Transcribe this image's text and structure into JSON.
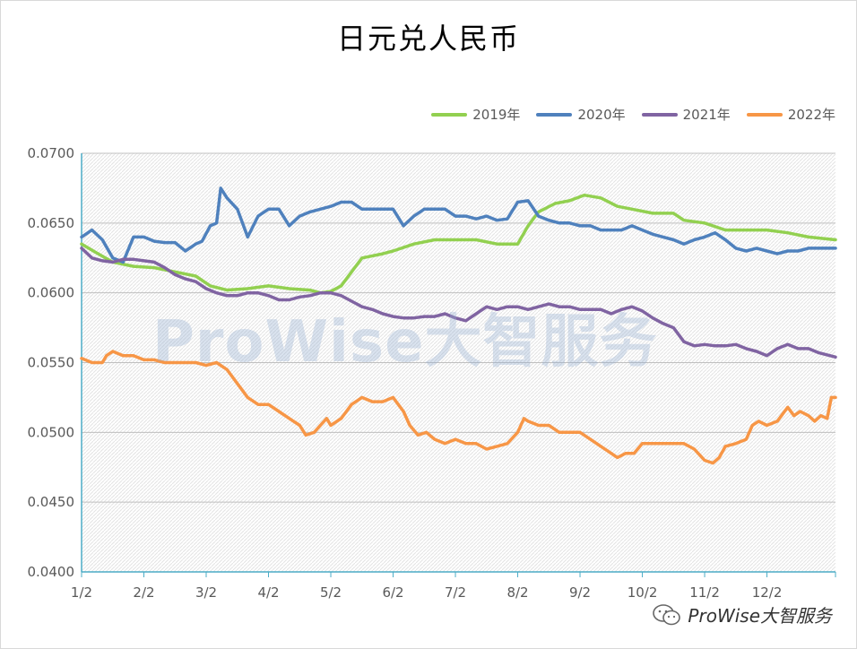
{
  "chart_data": {
    "type": "line",
    "title": "日元兑人民币",
    "xlabel": "",
    "ylabel": "",
    "x_ticks": [
      "1/2",
      "2/2",
      "3/2",
      "4/2",
      "5/2",
      "6/2",
      "7/2",
      "8/2",
      "9/2",
      "10/2",
      "11/2",
      "12/2"
    ],
    "y_ticks": [
      "0.0700",
      "0.0650",
      "0.0600",
      "0.0550",
      "0.0500",
      "0.0450",
      "0.0400"
    ],
    "ylim": [
      0.04,
      0.07
    ],
    "legend_position": "top-right",
    "grid": true,
    "x_days": [
      0,
      30,
      60,
      90,
      120,
      150,
      180,
      210,
      240,
      270,
      300,
      330,
      363
    ],
    "series": [
      {
        "name": "2019年",
        "color": "#92d050",
        "points": [
          [
            0,
            0.0635
          ],
          [
            8,
            0.0628
          ],
          [
            15,
            0.0622
          ],
          [
            25,
            0.0619
          ],
          [
            35,
            0.0618
          ],
          [
            45,
            0.0615
          ],
          [
            55,
            0.0612
          ],
          [
            62,
            0.0605
          ],
          [
            70,
            0.0602
          ],
          [
            80,
            0.0603
          ],
          [
            90,
            0.0605
          ],
          [
            100,
            0.0603
          ],
          [
            110,
            0.0602
          ],
          [
            115,
            0.06
          ],
          [
            120,
            0.0601
          ],
          [
            125,
            0.0605
          ],
          [
            130,
            0.0615
          ],
          [
            135,
            0.0625
          ],
          [
            145,
            0.0628
          ],
          [
            150,
            0.063
          ],
          [
            160,
            0.0635
          ],
          [
            170,
            0.0638
          ],
          [
            180,
            0.0638
          ],
          [
            190,
            0.0638
          ],
          [
            200,
            0.0635
          ],
          [
            210,
            0.0635
          ],
          [
            215,
            0.0648
          ],
          [
            220,
            0.0658
          ],
          [
            228,
            0.0664
          ],
          [
            235,
            0.0666
          ],
          [
            242,
            0.067
          ],
          [
            250,
            0.0668
          ],
          [
            258,
            0.0662
          ],
          [
            265,
            0.066
          ],
          [
            275,
            0.0657
          ],
          [
            285,
            0.0657
          ],
          [
            290,
            0.0652
          ],
          [
            300,
            0.065
          ],
          [
            310,
            0.0645
          ],
          [
            320,
            0.0645
          ],
          [
            330,
            0.0645
          ],
          [
            340,
            0.0643
          ],
          [
            350,
            0.064
          ],
          [
            363,
            0.0638
          ]
        ]
      },
      {
        "name": "2020年",
        "color": "#4f81bd",
        "points": [
          [
            0,
            0.064
          ],
          [
            5,
            0.0645
          ],
          [
            10,
            0.0638
          ],
          [
            15,
            0.0625
          ],
          [
            20,
            0.0622
          ],
          [
            25,
            0.064
          ],
          [
            30,
            0.064
          ],
          [
            35,
            0.0637
          ],
          [
            40,
            0.0636
          ],
          [
            45,
            0.0636
          ],
          [
            50,
            0.063
          ],
          [
            55,
            0.0635
          ],
          [
            58,
            0.0637
          ],
          [
            62,
            0.0648
          ],
          [
            65,
            0.065
          ],
          [
            67,
            0.0675
          ],
          [
            70,
            0.0668
          ],
          [
            75,
            0.066
          ],
          [
            80,
            0.064
          ],
          [
            85,
            0.0655
          ],
          [
            90,
            0.066
          ],
          [
            95,
            0.066
          ],
          [
            100,
            0.0648
          ],
          [
            105,
            0.0655
          ],
          [
            110,
            0.0658
          ],
          [
            115,
            0.066
          ],
          [
            120,
            0.0662
          ],
          [
            125,
            0.0665
          ],
          [
            130,
            0.0665
          ],
          [
            135,
            0.066
          ],
          [
            140,
            0.066
          ],
          [
            145,
            0.066
          ],
          [
            150,
            0.066
          ],
          [
            155,
            0.0648
          ],
          [
            160,
            0.0655
          ],
          [
            165,
            0.066
          ],
          [
            170,
            0.066
          ],
          [
            175,
            0.066
          ],
          [
            180,
            0.0655
          ],
          [
            185,
            0.0655
          ],
          [
            190,
            0.0653
          ],
          [
            195,
            0.0655
          ],
          [
            200,
            0.0652
          ],
          [
            205,
            0.0653
          ],
          [
            210,
            0.0665
          ],
          [
            215,
            0.0666
          ],
          [
            220,
            0.0655
          ],
          [
            225,
            0.0652
          ],
          [
            230,
            0.065
          ],
          [
            235,
            0.065
          ],
          [
            240,
            0.0648
          ],
          [
            245,
            0.0648
          ],
          [
            250,
            0.0645
          ],
          [
            255,
            0.0645
          ],
          [
            260,
            0.0645
          ],
          [
            265,
            0.0648
          ],
          [
            270,
            0.0645
          ],
          [
            275,
            0.0642
          ],
          [
            280,
            0.064
          ],
          [
            285,
            0.0638
          ],
          [
            290,
            0.0635
          ],
          [
            295,
            0.0638
          ],
          [
            300,
            0.064
          ],
          [
            305,
            0.0643
          ],
          [
            310,
            0.0638
          ],
          [
            315,
            0.0632
          ],
          [
            320,
            0.063
          ],
          [
            325,
            0.0632
          ],
          [
            330,
            0.063
          ],
          [
            335,
            0.0628
          ],
          [
            340,
            0.063
          ],
          [
            345,
            0.063
          ],
          [
            350,
            0.0632
          ],
          [
            355,
            0.0632
          ],
          [
            363,
            0.0632
          ]
        ]
      },
      {
        "name": "2021年",
        "color": "#8064a2",
        "points": [
          [
            0,
            0.0632
          ],
          [
            5,
            0.0625
          ],
          [
            10,
            0.0623
          ],
          [
            15,
            0.0622
          ],
          [
            20,
            0.0624
          ],
          [
            25,
            0.0624
          ],
          [
            30,
            0.0623
          ],
          [
            35,
            0.0622
          ],
          [
            40,
            0.0618
          ],
          [
            45,
            0.0613
          ],
          [
            50,
            0.061
          ],
          [
            55,
            0.0608
          ],
          [
            60,
            0.0603
          ],
          [
            65,
            0.06
          ],
          [
            70,
            0.0598
          ],
          [
            75,
            0.0598
          ],
          [
            80,
            0.06
          ],
          [
            85,
            0.06
          ],
          [
            90,
            0.0598
          ],
          [
            95,
            0.0595
          ],
          [
            100,
            0.0595
          ],
          [
            105,
            0.0597
          ],
          [
            110,
            0.0598
          ],
          [
            115,
            0.06
          ],
          [
            120,
            0.06
          ],
          [
            125,
            0.0598
          ],
          [
            130,
            0.0594
          ],
          [
            135,
            0.059
          ],
          [
            140,
            0.0588
          ],
          [
            145,
            0.0585
          ],
          [
            150,
            0.0583
          ],
          [
            155,
            0.0582
          ],
          [
            160,
            0.0582
          ],
          [
            165,
            0.0583
          ],
          [
            170,
            0.0583
          ],
          [
            175,
            0.0585
          ],
          [
            180,
            0.0582
          ],
          [
            185,
            0.058
          ],
          [
            190,
            0.0585
          ],
          [
            195,
            0.059
          ],
          [
            200,
            0.0588
          ],
          [
            205,
            0.059
          ],
          [
            210,
            0.059
          ],
          [
            215,
            0.0588
          ],
          [
            220,
            0.059
          ],
          [
            225,
            0.0592
          ],
          [
            230,
            0.059
          ],
          [
            235,
            0.059
          ],
          [
            240,
            0.0588
          ],
          [
            245,
            0.0588
          ],
          [
            250,
            0.0588
          ],
          [
            255,
            0.0585
          ],
          [
            260,
            0.0588
          ],
          [
            265,
            0.059
          ],
          [
            270,
            0.0587
          ],
          [
            275,
            0.0582
          ],
          [
            280,
            0.0578
          ],
          [
            285,
            0.0575
          ],
          [
            290,
            0.0565
          ],
          [
            295,
            0.0562
          ],
          [
            300,
            0.0563
          ],
          [
            305,
            0.0562
          ],
          [
            310,
            0.0562
          ],
          [
            315,
            0.0563
          ],
          [
            320,
            0.056
          ],
          [
            325,
            0.0558
          ],
          [
            330,
            0.0555
          ],
          [
            335,
            0.056
          ],
          [
            340,
            0.0563
          ],
          [
            345,
            0.056
          ],
          [
            350,
            0.056
          ],
          [
            355,
            0.0557
          ],
          [
            363,
            0.0554
          ]
        ]
      },
      {
        "name": "2022年",
        "color": "#f79646",
        "points": [
          [
            0,
            0.0553
          ],
          [
            5,
            0.055
          ],
          [
            10,
            0.055
          ],
          [
            12,
            0.0555
          ],
          [
            15,
            0.0558
          ],
          [
            20,
            0.0555
          ],
          [
            25,
            0.0555
          ],
          [
            30,
            0.0552
          ],
          [
            35,
            0.0552
          ],
          [
            40,
            0.055
          ],
          [
            45,
            0.055
          ],
          [
            50,
            0.055
          ],
          [
            55,
            0.055
          ],
          [
            60,
            0.0548
          ],
          [
            65,
            0.055
          ],
          [
            70,
            0.0545
          ],
          [
            75,
            0.0535
          ],
          [
            80,
            0.0525
          ],
          [
            85,
            0.052
          ],
          [
            90,
            0.052
          ],
          [
            95,
            0.0515
          ],
          [
            100,
            0.051
          ],
          [
            105,
            0.0505
          ],
          [
            108,
            0.0498
          ],
          [
            112,
            0.05
          ],
          [
            115,
            0.0505
          ],
          [
            118,
            0.051
          ],
          [
            120,
            0.0505
          ],
          [
            125,
            0.051
          ],
          [
            130,
            0.052
          ],
          [
            135,
            0.0525
          ],
          [
            140,
            0.0522
          ],
          [
            145,
            0.0522
          ],
          [
            150,
            0.0525
          ],
          [
            155,
            0.0515
          ],
          [
            158,
            0.0505
          ],
          [
            162,
            0.0498
          ],
          [
            166,
            0.05
          ],
          [
            170,
            0.0495
          ],
          [
            175,
            0.0492
          ],
          [
            180,
            0.0495
          ],
          [
            185,
            0.0492
          ],
          [
            190,
            0.0492
          ],
          [
            195,
            0.0488
          ],
          [
            200,
            0.049
          ],
          [
            205,
            0.0492
          ],
          [
            210,
            0.05
          ],
          [
            213,
            0.051
          ],
          [
            215,
            0.0508
          ],
          [
            220,
            0.0505
          ],
          [
            225,
            0.0505
          ],
          [
            230,
            0.05
          ],
          [
            235,
            0.05
          ],
          [
            240,
            0.05
          ],
          [
            245,
            0.0495
          ],
          [
            250,
            0.049
          ],
          [
            255,
            0.0485
          ],
          [
            258,
            0.0482
          ],
          [
            262,
            0.0485
          ],
          [
            266,
            0.0485
          ],
          [
            270,
            0.0492
          ],
          [
            275,
            0.0492
          ],
          [
            280,
            0.0492
          ],
          [
            285,
            0.0492
          ],
          [
            290,
            0.0492
          ],
          [
            295,
            0.0488
          ],
          [
            300,
            0.048
          ],
          [
            304,
            0.0478
          ],
          [
            307,
            0.0482
          ],
          [
            310,
            0.049
          ],
          [
            315,
            0.0492
          ],
          [
            320,
            0.0495
          ],
          [
            323,
            0.0505
          ],
          [
            326,
            0.0508
          ],
          [
            330,
            0.0505
          ],
          [
            335,
            0.0508
          ],
          [
            340,
            0.0518
          ],
          [
            343,
            0.0512
          ],
          [
            346,
            0.0515
          ],
          [
            350,
            0.0512
          ],
          [
            353,
            0.0508
          ],
          [
            356,
            0.0512
          ],
          [
            359,
            0.051
          ],
          [
            361,
            0.0525
          ],
          [
            363,
            0.0525
          ]
        ]
      }
    ]
  },
  "watermark": {
    "text": "ProWise大智服务"
  },
  "wechat_tag": {
    "text": "ProWise大智服务",
    "icon": "wechat-icon"
  }
}
